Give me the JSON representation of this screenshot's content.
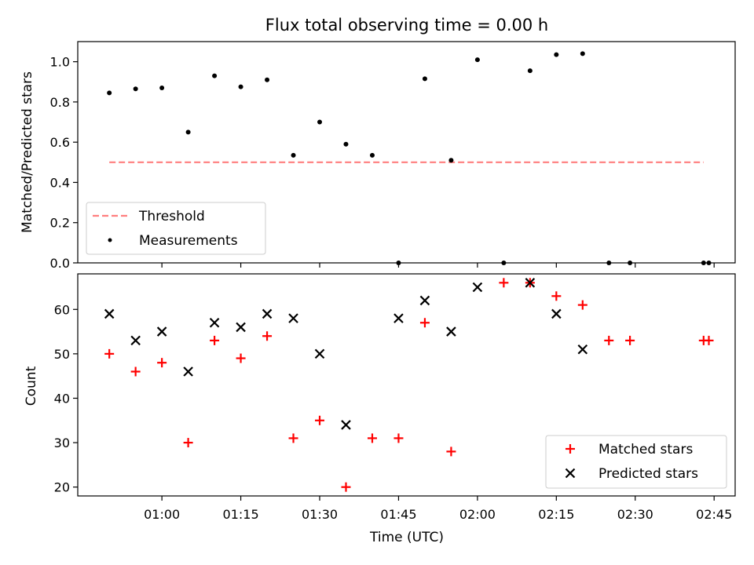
{
  "figure": {
    "title": "Flux total observing time = 0.00 h"
  },
  "chart_data": [
    {
      "type": "scatter",
      "title": "Flux total observing time = 0.00 h",
      "xlabel": "",
      "ylabel": "Matched/Predicted stars",
      "xlim": [
        "00:44",
        "02:49"
      ],
      "ylim": [
        0,
        1.1
      ],
      "yticks": [
        0.0,
        0.2,
        0.4,
        0.6,
        0.8,
        1.0
      ],
      "ytick_labels": [
        "0.0",
        "0.2",
        "0.4",
        "0.6",
        "0.8",
        "1.0"
      ],
      "legend": "bottom-left",
      "series": [
        {
          "name": "Threshold",
          "kind": "dashed-line",
          "color": "#ff7f7f",
          "x": [
            "00:50",
            "02:43"
          ],
          "y": [
            0.5,
            0.5
          ]
        },
        {
          "name": "Measurements",
          "kind": "dot",
          "color": "#000000",
          "x": [
            "00:50",
            "00:55",
            "01:00",
            "01:05",
            "01:10",
            "01:15",
            "01:20",
            "01:25",
            "01:30",
            "01:35",
            "01:40",
            "01:45",
            "01:50",
            "01:55",
            "02:00",
            "02:05",
            "02:10",
            "02:15",
            "02:20",
            "02:25",
            "02:29",
            "02:43",
            "02:44"
          ],
          "y": [
            0.845,
            0.865,
            0.87,
            0.65,
            0.93,
            0.875,
            0.91,
            0.535,
            0.7,
            0.59,
            0.535,
            0.0,
            0.915,
            0.51,
            1.01,
            0.0,
            0.955,
            1.035,
            1.04,
            0.0,
            0.0,
            0.0,
            0.0
          ]
        }
      ]
    },
    {
      "type": "scatter",
      "title": "",
      "xlabel": "Time (UTC)",
      "ylabel": "Count",
      "xlim": [
        "00:44",
        "02:49"
      ],
      "xticks": [
        "01:00",
        "01:15",
        "01:30",
        "01:45",
        "02:00",
        "02:15",
        "02:30",
        "02:45"
      ],
      "ylim": [
        18,
        68
      ],
      "yticks": [
        20,
        30,
        40,
        50,
        60
      ],
      "legend": "bottom-right",
      "series": [
        {
          "name": "Matched stars",
          "kind": "plus",
          "color": "#ff0000",
          "x": [
            "00:50",
            "00:55",
            "01:00",
            "01:05",
            "01:10",
            "01:15",
            "01:20",
            "01:25",
            "01:30",
            "01:35",
            "01:40",
            "01:45",
            "01:50",
            "01:55",
            "02:05",
            "02:10",
            "02:15",
            "02:20",
            "02:25",
            "02:29",
            "02:43",
            "02:44"
          ],
          "y": [
            50,
            46,
            48,
            30,
            53,
            49,
            54,
            31,
            35,
            20,
            31,
            31,
            57,
            28,
            66,
            66,
            63,
            61,
            53,
            53,
            53,
            53
          ]
        },
        {
          "name": "Predicted stars",
          "kind": "x",
          "color": "#000000",
          "x": [
            "00:50",
            "00:55",
            "01:00",
            "01:05",
            "01:10",
            "01:15",
            "01:20",
            "01:25",
            "01:30",
            "01:35",
            "01:45",
            "01:50",
            "01:55",
            "02:00",
            "02:10",
            "02:15",
            "02:20"
          ],
          "y": [
            59,
            53,
            55,
            46,
            57,
            56,
            59,
            58,
            50,
            34,
            58,
            62,
            55,
            65,
            66,
            59,
            51
          ]
        }
      ]
    }
  ]
}
